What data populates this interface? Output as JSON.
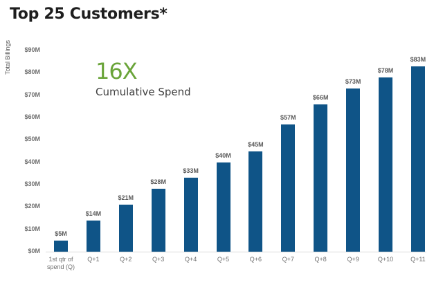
{
  "title": "Top 25 Customers*",
  "callout": {
    "value": "16X",
    "label": "Cumulative Spend",
    "value_color": "#6aa439"
  },
  "chart_data": {
    "type": "bar",
    "title": "Top 25 Customers*",
    "xlabel": "",
    "ylabel": "Total Billings",
    "ylim": [
      0,
      90
    ],
    "y_ticks": [
      "$0M",
      "$10M",
      "$20M",
      "$30M",
      "$40M",
      "$50M",
      "$60M",
      "$70M",
      "$80M",
      "$90M"
    ],
    "categories": [
      "1st qtr of spend (Q)",
      "Q+1",
      "Q+2",
      "Q+3",
      "Q+4",
      "Q+5",
      "Q+6",
      "Q+7",
      "Q+8",
      "Q+9",
      "Q+10",
      "Q+11"
    ],
    "values": [
      5,
      14,
      21,
      28,
      33,
      40,
      45,
      57,
      66,
      73,
      78,
      83
    ],
    "value_labels": [
      "$5M",
      "$14M",
      "$21M",
      "$28M",
      "$33M",
      "$40M",
      "$45M",
      "$57M",
      "$66M",
      "$73M",
      "$78M",
      "$83M"
    ],
    "unit": "$M",
    "bar_color": "#0f5487",
    "grid": false,
    "legend": null,
    "annotations": [
      "16X",
      "Cumulative Spend"
    ]
  }
}
